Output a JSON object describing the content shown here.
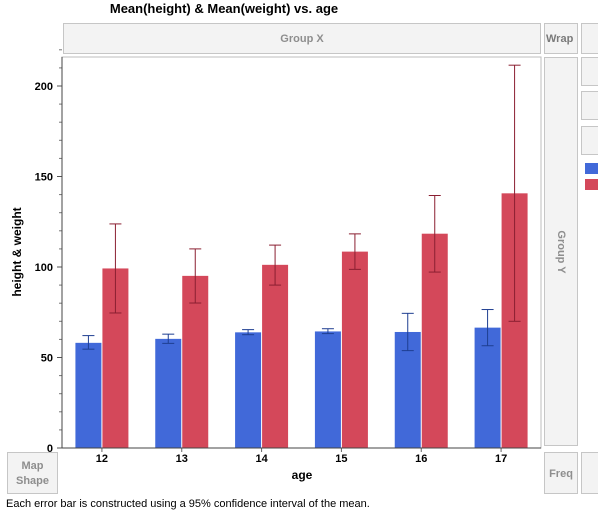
{
  "title": "Mean(height) & Mean(weight) vs. age",
  "zones": {
    "group_x": "Group X",
    "wrap": "Wrap",
    "group_y": "Group Y",
    "map_shape_line1": "Map",
    "map_shape_line2": "Shape",
    "freq": "Freq"
  },
  "footnote": "Each error bar is constructed using a 95% confidence interval of the mean.",
  "colors": {
    "height": "#4169d9",
    "weight": "#d4485a"
  },
  "chart_data": {
    "type": "bar",
    "title": "Mean(height) & Mean(weight) vs. age",
    "xlabel": "age",
    "ylabel": "height & weight",
    "categories": [
      "12",
      "13",
      "14",
      "15",
      "16",
      "17"
    ],
    "ylim": [
      0,
      220
    ],
    "yticks": [
      0,
      50,
      100,
      150,
      200
    ],
    "grid": false,
    "legend": "right (partially cropped, swatches only)",
    "series": [
      {
        "color": "#4169d9",
        "values": [
          58.1,
          60.3,
          63.9,
          64.4,
          64.1,
          66.5
        ],
        "err_low": [
          54.6,
          57.8,
          62.6,
          63.2,
          53.8,
          56.5
        ],
        "err_high": [
          62.1,
          62.9,
          65.4,
          65.9,
          74.4,
          76.5
        ]
      },
      {
        "color": "#d4485a",
        "values": [
          99.2,
          95.1,
          101.2,
          108.5,
          118.4,
          140.7
        ],
        "err_low": [
          74.6,
          80.1,
          90.0,
          98.7,
          97.2,
          70.0
        ],
        "err_high": [
          123.8,
          110.0,
          112.1,
          118.3,
          139.5,
          211.5
        ]
      }
    ]
  }
}
